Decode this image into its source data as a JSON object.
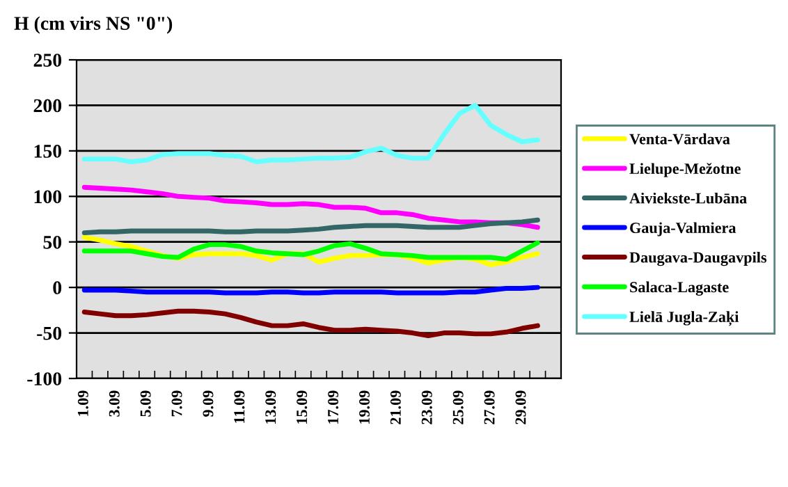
{
  "chart_data": {
    "type": "line",
    "title": "H (cm virs NS \"0\")",
    "categories": [
      "1.09",
      null,
      "3.09",
      null,
      "5.09",
      null,
      "7.09",
      null,
      "9.09",
      null,
      "11.09",
      null,
      "13.09",
      null,
      "15.09",
      null,
      "17.09",
      null,
      "19.09",
      null,
      "21.09",
      null,
      "23.09",
      null,
      "25.09",
      null,
      "27.09",
      null,
      "29.09",
      null,
      null
    ],
    "series": [
      {
        "name": "Venta-Vārdava",
        "color": "#ffff00",
        "values": [
          55,
          52,
          48,
          45,
          40,
          35,
          32,
          36,
          37,
          37,
          37,
          35,
          30,
          37,
          37,
          28,
          32,
          35,
          35,
          36,
          36,
          32,
          27,
          30,
          33,
          31,
          25,
          28,
          33,
          37,
          null
        ]
      },
      {
        "name": "Lielupe-Mežotne",
        "color": "#ff00ff",
        "values": [
          110,
          109,
          108,
          107,
          105,
          103,
          100,
          99,
          98,
          95,
          94,
          93,
          91,
          91,
          92,
          91,
          88,
          88,
          87,
          82,
          82,
          80,
          76,
          74,
          72,
          72,
          71,
          71,
          69,
          66,
          null
        ]
      },
      {
        "name": "Aiviekste-Lubāna",
        "color": "#336666",
        "values": [
          60,
          61,
          61,
          62,
          62,
          62,
          62,
          62,
          62,
          61,
          61,
          62,
          62,
          62,
          63,
          64,
          66,
          67,
          68,
          68,
          68,
          67,
          66,
          66,
          66,
          68,
          70,
          71,
          72,
          74,
          null
        ]
      },
      {
        "name": "Gauja-Valmiera",
        "color": "#0000ff",
        "values": [
          -3,
          -3,
          -3,
          -4,
          -5,
          -5,
          -5,
          -5,
          -5,
          -6,
          -6,
          -6,
          -5,
          -5,
          -6,
          -6,
          -5,
          -5,
          -5,
          -5,
          -6,
          -6,
          -6,
          -6,
          -5,
          -5,
          -3,
          -1,
          -1,
          0,
          null
        ]
      },
      {
        "name": "Daugava-Daugavpils",
        "color": "#800000",
        "values": [
          -27,
          -29,
          -31,
          -31,
          -30,
          -28,
          -26,
          -26,
          -27,
          -29,
          -33,
          -38,
          -42,
          -42,
          -40,
          -44,
          -47,
          -47,
          -46,
          -47,
          -48,
          -50,
          -53,
          -50,
          -50,
          -51,
          -51,
          -49,
          -45,
          -42,
          null
        ]
      },
      {
        "name": "Salaca-Lagaste",
        "color": "#00ff00",
        "values": [
          40,
          40,
          40,
          40,
          37,
          34,
          33,
          42,
          47,
          47,
          45,
          40,
          38,
          37,
          36,
          40,
          46,
          48,
          43,
          37,
          36,
          35,
          33,
          33,
          33,
          33,
          33,
          31,
          40,
          49,
          null
        ]
      },
      {
        "name": "Lielā Jugla-Zaķi",
        "color": "#66ffff",
        "values": [
          141,
          141,
          141,
          138,
          140,
          146,
          147,
          147,
          147,
          145,
          144,
          138,
          140,
          140,
          141,
          142,
          142,
          143,
          149,
          153,
          145,
          142,
          142,
          168,
          191,
          200,
          178,
          168,
          160,
          162,
          null
        ]
      }
    ],
    "ylim": [
      -100,
      250
    ],
    "yticks": [
      -100,
      -50,
      0,
      50,
      100,
      150,
      200,
      250
    ],
    "grid": "y",
    "legend": "right"
  }
}
